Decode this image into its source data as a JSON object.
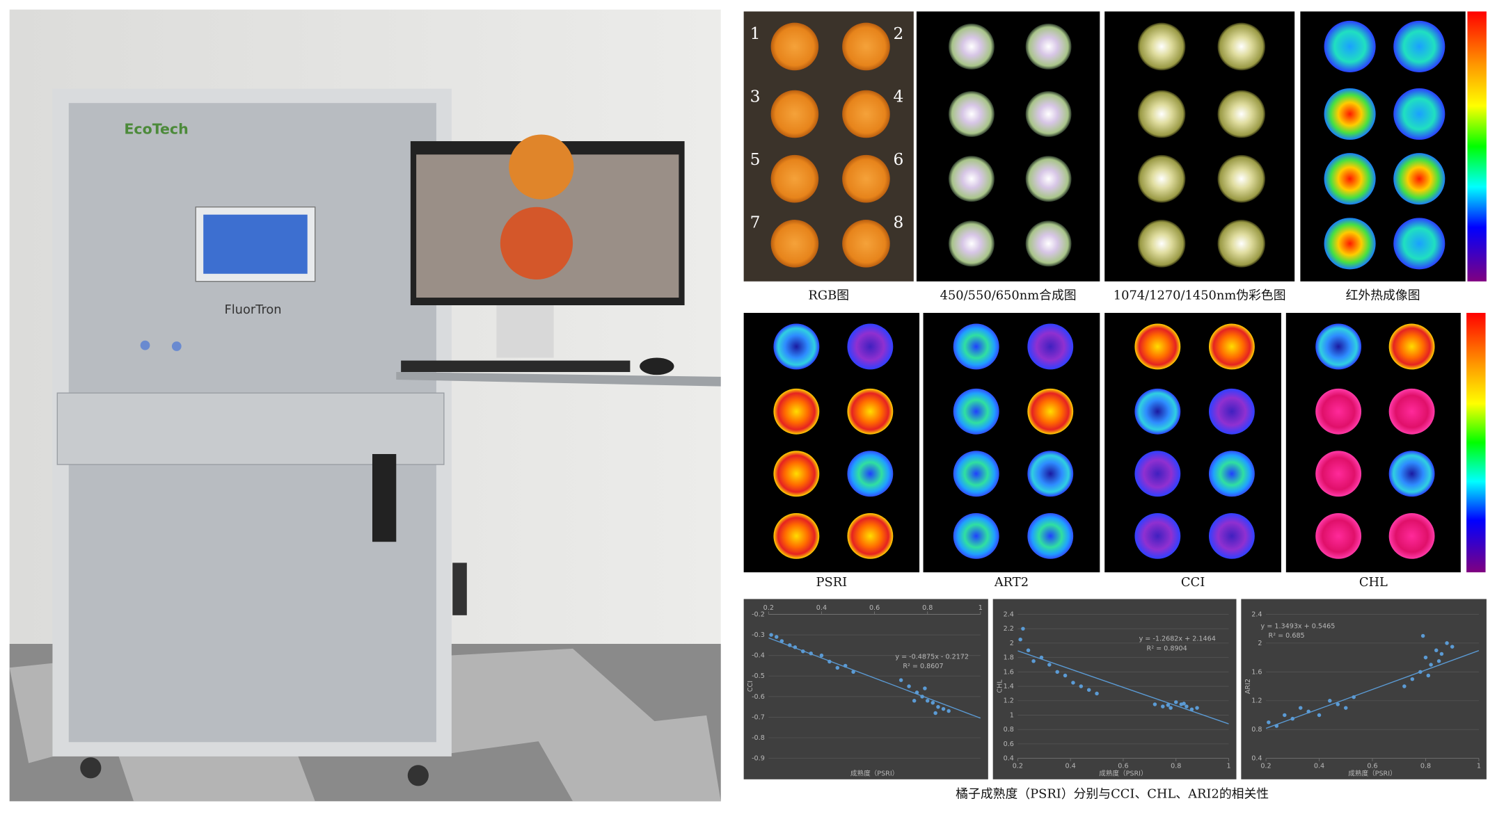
{
  "photo": {
    "brand": "EcoTech",
    "product": "FluorTron"
  },
  "panels": {
    "rgb_numbers": [
      "1",
      "2",
      "3",
      "4",
      "5",
      "6",
      "7",
      "8"
    ],
    "labels": [
      "RGB图",
      "450/550/650nm合成图",
      "1074/1270/1450nm伪彩色图",
      "红外热成像图",
      "PSRI",
      "ART2",
      "CCI",
      "CHL"
    ]
  },
  "chart_data": [
    {
      "type": "scatter",
      "y_label": "CCI",
      "x_label": "成熟度（PSRI）",
      "color": "#5b9bd5",
      "x_axis_position": "top",
      "xlim": [
        0.2,
        1
      ],
      "xticks": [
        0.2,
        0.4,
        0.6,
        0.8,
        1
      ],
      "ylim": [
        -0.9,
        -0.2
      ],
      "yticks": [
        -0.2,
        -0.3,
        -0.4,
        -0.5,
        -0.6,
        -0.7,
        -0.8,
        -0.9
      ],
      "x": [
        0.21,
        0.23,
        0.25,
        0.28,
        0.3,
        0.33,
        0.36,
        0.4,
        0.43,
        0.46,
        0.49,
        0.52,
        0.7,
        0.73,
        0.76,
        0.78,
        0.8,
        0.82,
        0.84,
        0.86,
        0.88,
        0.75,
        0.79,
        0.83
      ],
      "values": [
        -0.3,
        -0.31,
        -0.33,
        -0.35,
        -0.36,
        -0.38,
        -0.39,
        -0.4,
        -0.43,
        -0.46,
        -0.45,
        -0.48,
        -0.52,
        -0.55,
        -0.58,
        -0.6,
        -0.62,
        -0.63,
        -0.65,
        -0.66,
        -0.67,
        -0.62,
        -0.56,
        -0.68
      ],
      "trendline": {
        "slope": -0.4875,
        "intercept": -0.2172,
        "equation": "y = -0.4875x - 0.2172",
        "r_squared": "R² = 0.8607"
      }
    },
    {
      "type": "scatter",
      "y_label": "CHL",
      "x_label": "成熟度（PSRI）",
      "color": "#5b9bd5",
      "x_axis_position": "bottom",
      "xlim": [
        0.2,
        1
      ],
      "xticks": [
        0.2,
        0.4,
        0.6,
        0.8,
        1
      ],
      "ylim": [
        0.4,
        2.4
      ],
      "yticks": [
        0.4,
        0.6,
        0.8,
        1,
        1.2,
        1.4,
        1.6,
        1.8,
        2,
        2.2,
        2.4
      ],
      "x": [
        0.21,
        0.22,
        0.24,
        0.26,
        0.29,
        0.32,
        0.35,
        0.38,
        0.41,
        0.44,
        0.47,
        0.5,
        0.72,
        0.75,
        0.78,
        0.8,
        0.82,
        0.84,
        0.86,
        0.88,
        0.77,
        0.83
      ],
      "values": [
        2.05,
        2.2,
        1.9,
        1.75,
        1.8,
        1.7,
        1.6,
        1.55,
        1.45,
        1.4,
        1.35,
        1.3,
        1.15,
        1.12,
        1.1,
        1.18,
        1.15,
        1.12,
        1.08,
        1.1,
        1.14,
        1.16
      ],
      "trendline": {
        "slope": -1.2682,
        "intercept": 2.1464,
        "equation": "y = -1.2682x + 2.1464",
        "r_squared": "R² = 0.8904"
      }
    },
    {
      "type": "scatter",
      "y_label": "ARI2",
      "x_label": "成熟度（PSRI）",
      "color": "#5b9bd5",
      "x_axis_position": "bottom",
      "xlim": [
        0.2,
        1
      ],
      "xticks": [
        0.2,
        0.4,
        0.6,
        0.8,
        1
      ],
      "ylim": [
        0.4,
        2.4
      ],
      "yticks": [
        0.4,
        0.8,
        1.2,
        1.6,
        2,
        2.4
      ],
      "x": [
        0.21,
        0.24,
        0.27,
        0.3,
        0.33,
        0.36,
        0.4,
        0.44,
        0.47,
        0.5,
        0.53,
        0.72,
        0.75,
        0.78,
        0.8,
        0.82,
        0.84,
        0.86,
        0.88,
        0.9,
        0.79,
        0.85,
        0.81
      ],
      "values": [
        0.9,
        0.85,
        1.0,
        0.95,
        1.1,
        1.05,
        1.0,
        1.2,
        1.15,
        1.1,
        1.25,
        1.4,
        1.5,
        1.6,
        1.8,
        1.7,
        1.9,
        1.85,
        2.0,
        1.95,
        2.1,
        1.75,
        1.55
      ],
      "trendline": {
        "slope": 1.3493,
        "intercept": 0.5465,
        "equation": "y = 1.3493x + 0.5465",
        "r_squared": "R² = 0.685"
      }
    }
  ],
  "caption": "橘子成熟度（PSRI）分别与CCI、CHL、ARI2的相关性"
}
